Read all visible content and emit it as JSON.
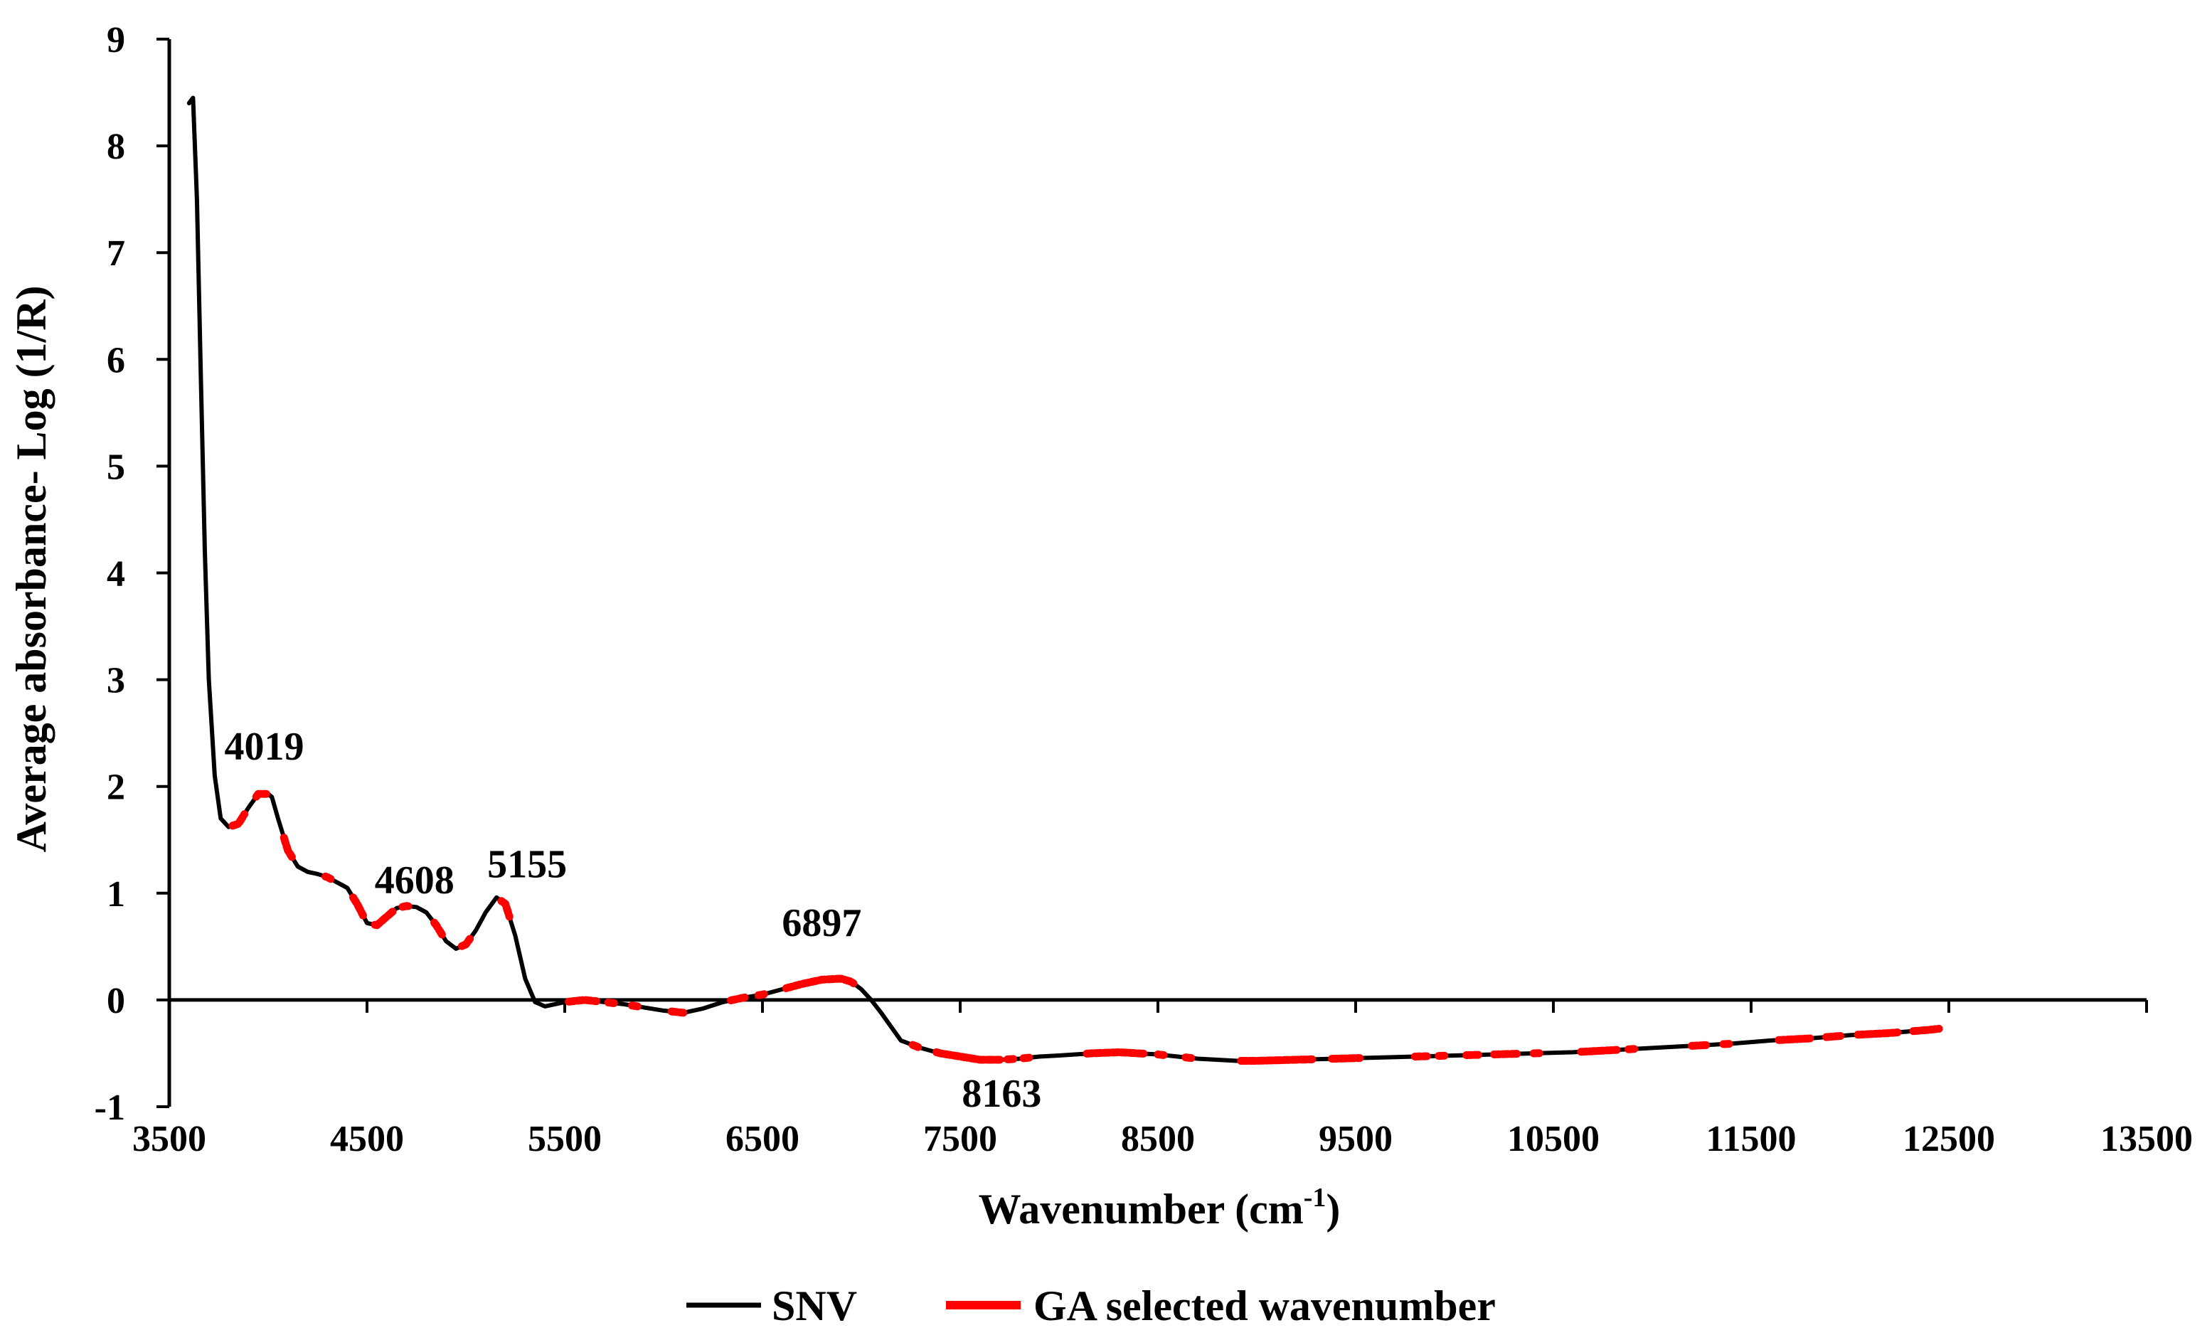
{
  "chart_data": {
    "type": "line",
    "title": "",
    "xlabel": {
      "main": "Wavenumber (cm",
      "sup": "-1",
      "close": ")"
    },
    "ylabel": "Average absorbance- Log (1/R)",
    "xlim": [
      3500,
      13500
    ],
    "ylim": [
      -1,
      9
    ],
    "x_ticks": [
      3500,
      4500,
      5500,
      6500,
      7500,
      8500,
      9500,
      10500,
      11500,
      12500,
      13500
    ],
    "y_ticks": [
      -1,
      0,
      1,
      2,
      3,
      4,
      5,
      6,
      7,
      8,
      9
    ],
    "grid": false,
    "legend_position": "bottom",
    "colors": {
      "snv": "#000000",
      "ga": "#ff0000"
    },
    "series": [
      {
        "name": "SNV",
        "x": [
          3600,
          3620,
          3640,
          3660,
          3680,
          3700,
          3730,
          3760,
          3800,
          3850,
          3900,
          3950,
          4000,
          4019,
          4050,
          4100,
          4150,
          4200,
          4250,
          4300,
          4350,
          4400,
          4450,
          4500,
          4550,
          4600,
          4650,
          4700,
          4750,
          4800,
          4850,
          4900,
          4950,
          5000,
          5050,
          5100,
          5155,
          5200,
          5250,
          5300,
          5350,
          5400,
          5450,
          5500,
          5600,
          5700,
          5800,
          5900,
          6000,
          6100,
          6200,
          6300,
          6400,
          6500,
          6600,
          6700,
          6800,
          6897,
          6950,
          7000,
          7050,
          7100,
          7150,
          7200,
          7300,
          7400,
          7500,
          7600,
          7700,
          7800,
          7900,
          8000,
          8163,
          8300,
          8400,
          8500,
          8600,
          8700,
          8800,
          8900,
          9000,
          9200,
          9400,
          9600,
          9800,
          10000,
          10200,
          10400,
          10600,
          10800,
          11000,
          11200,
          11400,
          11600,
          11800,
          12000,
          12200,
          12400,
          12450
        ],
        "y": [
          8.4,
          8.45,
          7.5,
          5.8,
          4.2,
          3.0,
          2.1,
          1.7,
          1.62,
          1.65,
          1.8,
          1.93,
          1.93,
          1.9,
          1.7,
          1.4,
          1.25,
          1.2,
          1.18,
          1.15,
          1.1,
          1.05,
          0.9,
          0.72,
          0.7,
          0.78,
          0.86,
          0.88,
          0.87,
          0.82,
          0.7,
          0.55,
          0.48,
          0.52,
          0.65,
          0.82,
          0.96,
          0.9,
          0.6,
          0.2,
          -0.02,
          -0.06,
          -0.04,
          -0.02,
          0.0,
          -0.02,
          -0.04,
          -0.07,
          -0.1,
          -0.12,
          -0.08,
          -0.02,
          0.02,
          0.05,
          0.1,
          0.15,
          0.19,
          0.2,
          0.17,
          0.1,
          0.0,
          -0.12,
          -0.25,
          -0.38,
          -0.45,
          -0.5,
          -0.53,
          -0.56,
          -0.56,
          -0.55,
          -0.53,
          -0.52,
          -0.5,
          -0.49,
          -0.5,
          -0.51,
          -0.53,
          -0.55,
          -0.56,
          -0.57,
          -0.57,
          -0.56,
          -0.55,
          -0.54,
          -0.53,
          -0.52,
          -0.51,
          -0.5,
          -0.49,
          -0.47,
          -0.45,
          -0.43,
          -0.41,
          -0.38,
          -0.36,
          -0.33,
          -0.31,
          -0.28,
          -0.27
        ]
      },
      {
        "name": "GA selected wavenumber",
        "ranges": [
          [
            3820,
            3880
          ],
          [
            3940,
            3990
          ],
          [
            4080,
            4120
          ],
          [
            4290,
            4320
          ],
          [
            4430,
            4480
          ],
          [
            4540,
            4640
          ],
          [
            4680,
            4720
          ],
          [
            4840,
            4880
          ],
          [
            4980,
            5020
          ],
          [
            5180,
            5220
          ],
          [
            5520,
            5660
          ],
          [
            5720,
            5760
          ],
          [
            5840,
            5880
          ],
          [
            6040,
            6100
          ],
          [
            6340,
            6420
          ],
          [
            6480,
            6520
          ],
          [
            6620,
            6960
          ],
          [
            7260,
            7300
          ],
          [
            7380,
            7700
          ],
          [
            7740,
            7780
          ],
          [
            7820,
            7860
          ],
          [
            8140,
            8440
          ],
          [
            8500,
            8540
          ],
          [
            8640,
            8680
          ],
          [
            8920,
            9280
          ],
          [
            9380,
            9520
          ],
          [
            9800,
            9860
          ],
          [
            9920,
            9960
          ],
          [
            10060,
            10120
          ],
          [
            10200,
            10320
          ],
          [
            10400,
            10440
          ],
          [
            10640,
            10820
          ],
          [
            10880,
            10920
          ],
          [
            11200,
            11280
          ],
          [
            11360,
            11400
          ],
          [
            11640,
            11800
          ],
          [
            11880,
            11960
          ],
          [
            12040,
            12240
          ],
          [
            12320,
            12450
          ]
        ]
      }
    ],
    "annotations": [
      {
        "text": "4019",
        "x": 3980,
        "y": 2.25
      },
      {
        "text": "4608",
        "x": 4740,
        "y": 1.0
      },
      {
        "text": "5155",
        "x": 5310,
        "y": 1.15
      },
      {
        "text": "6897",
        "x": 6800,
        "y": 0.6
      },
      {
        "text": "8163",
        "x": 7710,
        "y": -1.0
      }
    ]
  },
  "legend": {
    "snv_label": "SNV",
    "ga_label": "GA selected wavenumber"
  }
}
